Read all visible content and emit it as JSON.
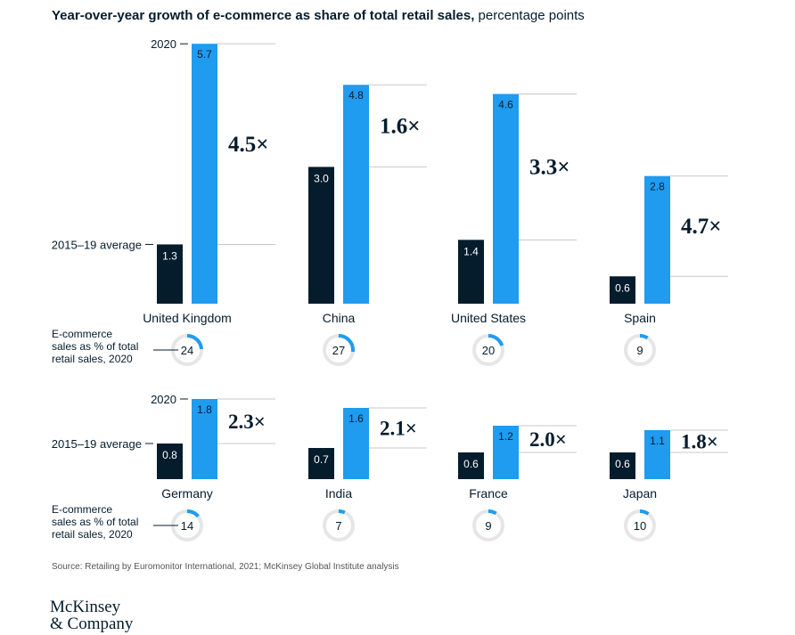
{
  "title": {
    "bold": "Year-over-year growth of e-commerce as share of total retail sales,",
    "unit": " percentage points"
  },
  "labels": {
    "row_top": "2020",
    "row_base": "2015–19 average",
    "share_line1": "E-commerce",
    "share_line2": "sales as % of total",
    "share_line3": "retail sales, 2020"
  },
  "colors": {
    "avg": "#051c2c",
    "y2020": "#1f9bf0",
    "ring": "#e6e6e6",
    "guide": "#c8c8c8"
  },
  "chart_data": {
    "type": "bar",
    "series": [
      {
        "name": "2015–19 average",
        "key": "avg"
      },
      {
        "name": "2020",
        "key": "y2020"
      }
    ],
    "countries": [
      {
        "name": "United Kingdom",
        "avg": 1.3,
        "y2020": 5.7,
        "multiple": "4.5×",
        "share": 24
      },
      {
        "name": "China",
        "avg": 3.0,
        "y2020": 4.8,
        "multiple": "1.6×",
        "share": 27
      },
      {
        "name": "United States",
        "avg": 1.4,
        "y2020": 4.6,
        "multiple": "3.3×",
        "share": 20
      },
      {
        "name": "Spain",
        "avg": 0.6,
        "y2020": 2.8,
        "multiple": "4.7×",
        "share": 9
      },
      {
        "name": "Germany",
        "avg": 0.8,
        "y2020": 1.8,
        "multiple": "2.3×",
        "share": 14
      },
      {
        "name": "India",
        "avg": 0.7,
        "y2020": 1.6,
        "multiple": "2.1×",
        "share": 7
      },
      {
        "name": "France",
        "avg": 0.6,
        "y2020": 1.2,
        "multiple": "2.0×",
        "share": 9
      },
      {
        "name": "Japan",
        "avg": 0.6,
        "y2020": 1.1,
        "multiple": "1.8×",
        "share": 10
      }
    ]
  },
  "source": "Source: Retailing by Euromonitor International, 2021; McKinsey Global Institute analysis",
  "logo": {
    "line1": "McKinsey",
    "line2": "& Company"
  }
}
